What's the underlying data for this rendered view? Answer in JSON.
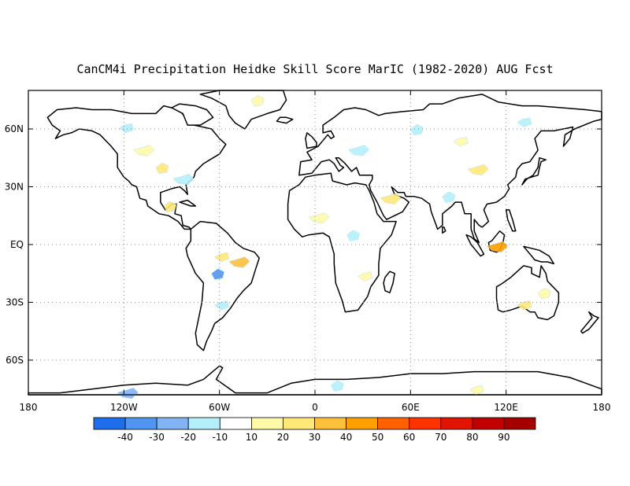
{
  "title": "CanCM4i Precipitation Heidke Skill Score MarIC (1982-2020) AUG Fcst",
  "map": {
    "lon_range": [
      -180,
      180
    ],
    "lat_range": [
      -78,
      80
    ],
    "x_ticks": [
      {
        "lon": -180,
        "label": "180"
      },
      {
        "lon": -120,
        "label": "120W"
      },
      {
        "lon": -60,
        "label": "60W"
      },
      {
        "lon": 0,
        "label": "0"
      },
      {
        "lon": 60,
        "label": "60E"
      },
      {
        "lon": 120,
        "label": "120E"
      },
      {
        "lon": 180,
        "label": "180"
      }
    ],
    "y_ticks": [
      {
        "lat": 60,
        "label": "60N"
      },
      {
        "lat": 30,
        "label": "30N"
      },
      {
        "lat": 0,
        "label": "EQ"
      },
      {
        "lat": -30,
        "label": "30S"
      },
      {
        "lat": -60,
        "label": "60S"
      }
    ],
    "grid": "dotted",
    "coast_color": "#000000",
    "ocean_color": "#ffffff"
  },
  "colorbar": {
    "colors": [
      "#1e6eeb",
      "#5096f0",
      "#82b4f5",
      "#b4f0fa",
      "#ffffff",
      "#fffaaa",
      "#ffe878",
      "#ffc03c",
      "#ffa000",
      "#ff6000",
      "#ff3200",
      "#e11400",
      "#c00000",
      "#a50000"
    ],
    "labels": [
      "-40",
      "-30",
      "-20",
      "-10",
      "10",
      "20",
      "30",
      "40",
      "50",
      "60",
      "70",
      "80",
      "90"
    ]
  },
  "land_patches": [
    {
      "lon": -110,
      "lat": 50,
      "color": "#fffaaa"
    },
    {
      "lon": -100,
      "lat": 40,
      "color": "#ffe878"
    },
    {
      "lon": -120,
      "lat": 62,
      "color": "#b4f0fa"
    },
    {
      "lon": -85,
      "lat": 35,
      "color": "#b4f0fa"
    },
    {
      "lon": -95,
      "lat": 20,
      "color": "#ffe878"
    },
    {
      "lon": -60,
      "lat": -5,
      "color": "#ffe878"
    },
    {
      "lon": -50,
      "lat": -8,
      "color": "#ffc03c"
    },
    {
      "lon": -65,
      "lat": -15,
      "color": "#5096f0"
    },
    {
      "lon": -60,
      "lat": -30,
      "color": "#b4f0fa"
    },
    {
      "lon": 0,
      "lat": 15,
      "color": "#fffaaa"
    },
    {
      "lon": 20,
      "lat": 5,
      "color": "#b4f0fa"
    },
    {
      "lon": 30,
      "lat": -15,
      "color": "#fffaaa"
    },
    {
      "lon": 25,
      "lat": 50,
      "color": "#b4f0fa"
    },
    {
      "lon": 60,
      "lat": 60,
      "color": "#b4f0fa"
    },
    {
      "lon": 90,
      "lat": 55,
      "color": "#fffaaa"
    },
    {
      "lon": 100,
      "lat": 40,
      "color": "#ffe878"
    },
    {
      "lon": 80,
      "lat": 25,
      "color": "#b4f0fa"
    },
    {
      "lon": 130,
      "lat": 65,
      "color": "#b4f0fa"
    },
    {
      "lon": 112,
      "lat": 0,
      "color": "#ffa000"
    },
    {
      "lon": 140,
      "lat": -25,
      "color": "#fffaaa"
    },
    {
      "lon": 130,
      "lat": -30,
      "color": "#ffe878"
    },
    {
      "lon": 45,
      "lat": 25,
      "color": "#ffe878"
    },
    {
      "lon": 10,
      "lat": -73,
      "color": "#b4f0fa"
    },
    {
      "lon": 100,
      "lat": -74,
      "color": "#fffaaa"
    },
    {
      "lon": -120,
      "lat": -76,
      "color": "#82b4f5"
    },
    {
      "lon": -40,
      "lat": 75,
      "color": "#fffaaa"
    }
  ]
}
